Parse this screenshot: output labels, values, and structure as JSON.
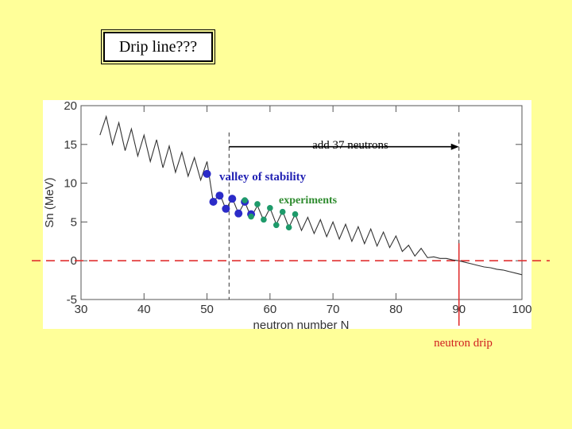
{
  "slide": {
    "title": "Drip line???"
  },
  "colors": {
    "background": "#FFFF99",
    "plot_background": "#FFFFFF",
    "curve": "#333333",
    "valley_points": "#2B2BC8",
    "experiment_points": "#1E9A6A",
    "valley_label": "#2323B4",
    "experiment_label": "#2E8B2E",
    "drip_line": "#E03030",
    "drip_label": "#D02020"
  },
  "annotations": {
    "add_neutrons": "add 37 neutrons",
    "valley": "valley of stability",
    "experiments": "experiments",
    "neutron_drip": "neutron drip"
  },
  "chart_data": {
    "type": "line",
    "xlabel": "neutron number N",
    "ylabel": "Sn (MeV)",
    "xlim": [
      30,
      100
    ],
    "ylim": [
      -5,
      20
    ],
    "xticks": [
      "30",
      "40",
      "50",
      "60",
      "70",
      "80",
      "90",
      "100"
    ],
    "yticks": [
      "-5",
      "0",
      "5",
      "10",
      "15",
      "20"
    ],
    "grid": false,
    "series": [
      {
        "x": [
          33,
          34,
          35,
          36,
          37,
          38,
          39,
          40,
          41,
          42,
          43,
          44,
          45,
          46,
          47,
          48,
          49,
          50,
          51,
          52,
          53,
          54,
          55,
          56,
          57,
          58,
          59,
          60,
          61,
          62,
          63,
          64,
          65,
          66,
          67,
          68,
          69,
          70,
          71,
          72,
          73,
          74,
          75,
          76,
          77,
          78,
          79,
          80,
          81,
          82,
          83,
          84,
          85,
          86,
          87,
          88,
          89,
          90,
          91,
          92,
          93,
          94,
          95,
          96,
          97,
          98,
          99,
          100
        ],
        "y": [
          16.2,
          18.6,
          15.0,
          17.8,
          14.2,
          17.0,
          13.5,
          16.2,
          12.8,
          15.6,
          12.0,
          14.8,
          11.4,
          14.0,
          10.9,
          13.3,
          10.4,
          12.8,
          7.5,
          8.7,
          6.6,
          8.1,
          6.1,
          7.6,
          5.6,
          7.1,
          5.2,
          6.8,
          4.7,
          6.4,
          4.3,
          6.0,
          3.9,
          5.6,
          3.5,
          5.3,
          3.1,
          5.0,
          2.8,
          4.7,
          2.5,
          4.4,
          2.2,
          4.1,
          1.9,
          3.7,
          1.7,
          3.2,
          1.2,
          2.0,
          0.6,
          1.6,
          0.4,
          0.5,
          0.3,
          0.3,
          0.1,
          0.0,
          -0.2,
          -0.4,
          -0.6,
          -0.8,
          -0.9,
          -1.1,
          -1.2,
          -1.4,
          -1.6,
          -1.8
        ]
      },
      {
        "name": "valley of stability",
        "x": [
          50,
          51,
          52,
          53,
          54,
          55,
          56,
          57
        ],
        "y": [
          11.2,
          7.6,
          8.4,
          6.7,
          8.0,
          6.1,
          7.6,
          6.0
        ]
      },
      {
        "name": "experiments",
        "x": [
          56,
          57,
          58,
          59,
          60,
          61,
          62,
          63,
          64
        ],
        "y": [
          7.8,
          5.7,
          7.3,
          5.3,
          6.8,
          4.6,
          6.3,
          4.3,
          6.0
        ]
      }
    ],
    "arrow": {
      "from_x": 53.5,
      "to_x": 90,
      "y": 14.7
    },
    "drip_point": {
      "x": 90,
      "y": 0
    },
    "zero_line_y": 0
  }
}
